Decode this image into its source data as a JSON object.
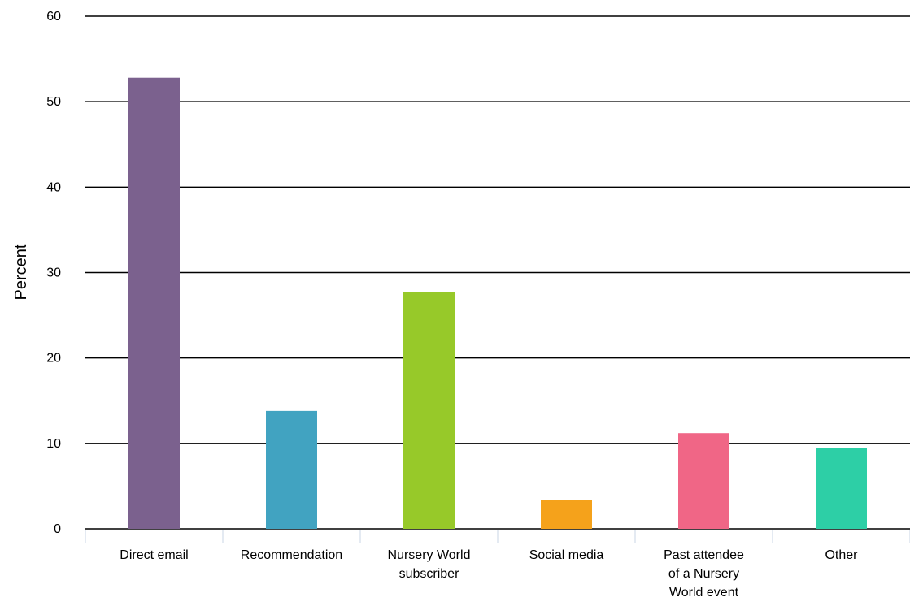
{
  "chart_data": {
    "type": "bar",
    "title": "",
    "xlabel": "",
    "ylabel": "Percent",
    "ylim": [
      0,
      60
    ],
    "yticks": [
      0,
      10,
      20,
      30,
      40,
      50,
      60
    ],
    "grid": true,
    "legend": "none",
    "categories": [
      [
        "Direct email"
      ],
      [
        "Recommendation"
      ],
      [
        "Nursery World",
        "subscriber"
      ],
      [
        "Social media"
      ],
      [
        "Past attendee",
        "of a Nursery",
        "World event"
      ],
      [
        "Other"
      ]
    ],
    "values": [
      52.8,
      13.8,
      27.7,
      3.4,
      11.2,
      9.5
    ],
    "colors": [
      "#7b618e",
      "#41a3c1",
      "#97c929",
      "#f5a21b",
      "#f06686",
      "#2dcfa6"
    ]
  }
}
